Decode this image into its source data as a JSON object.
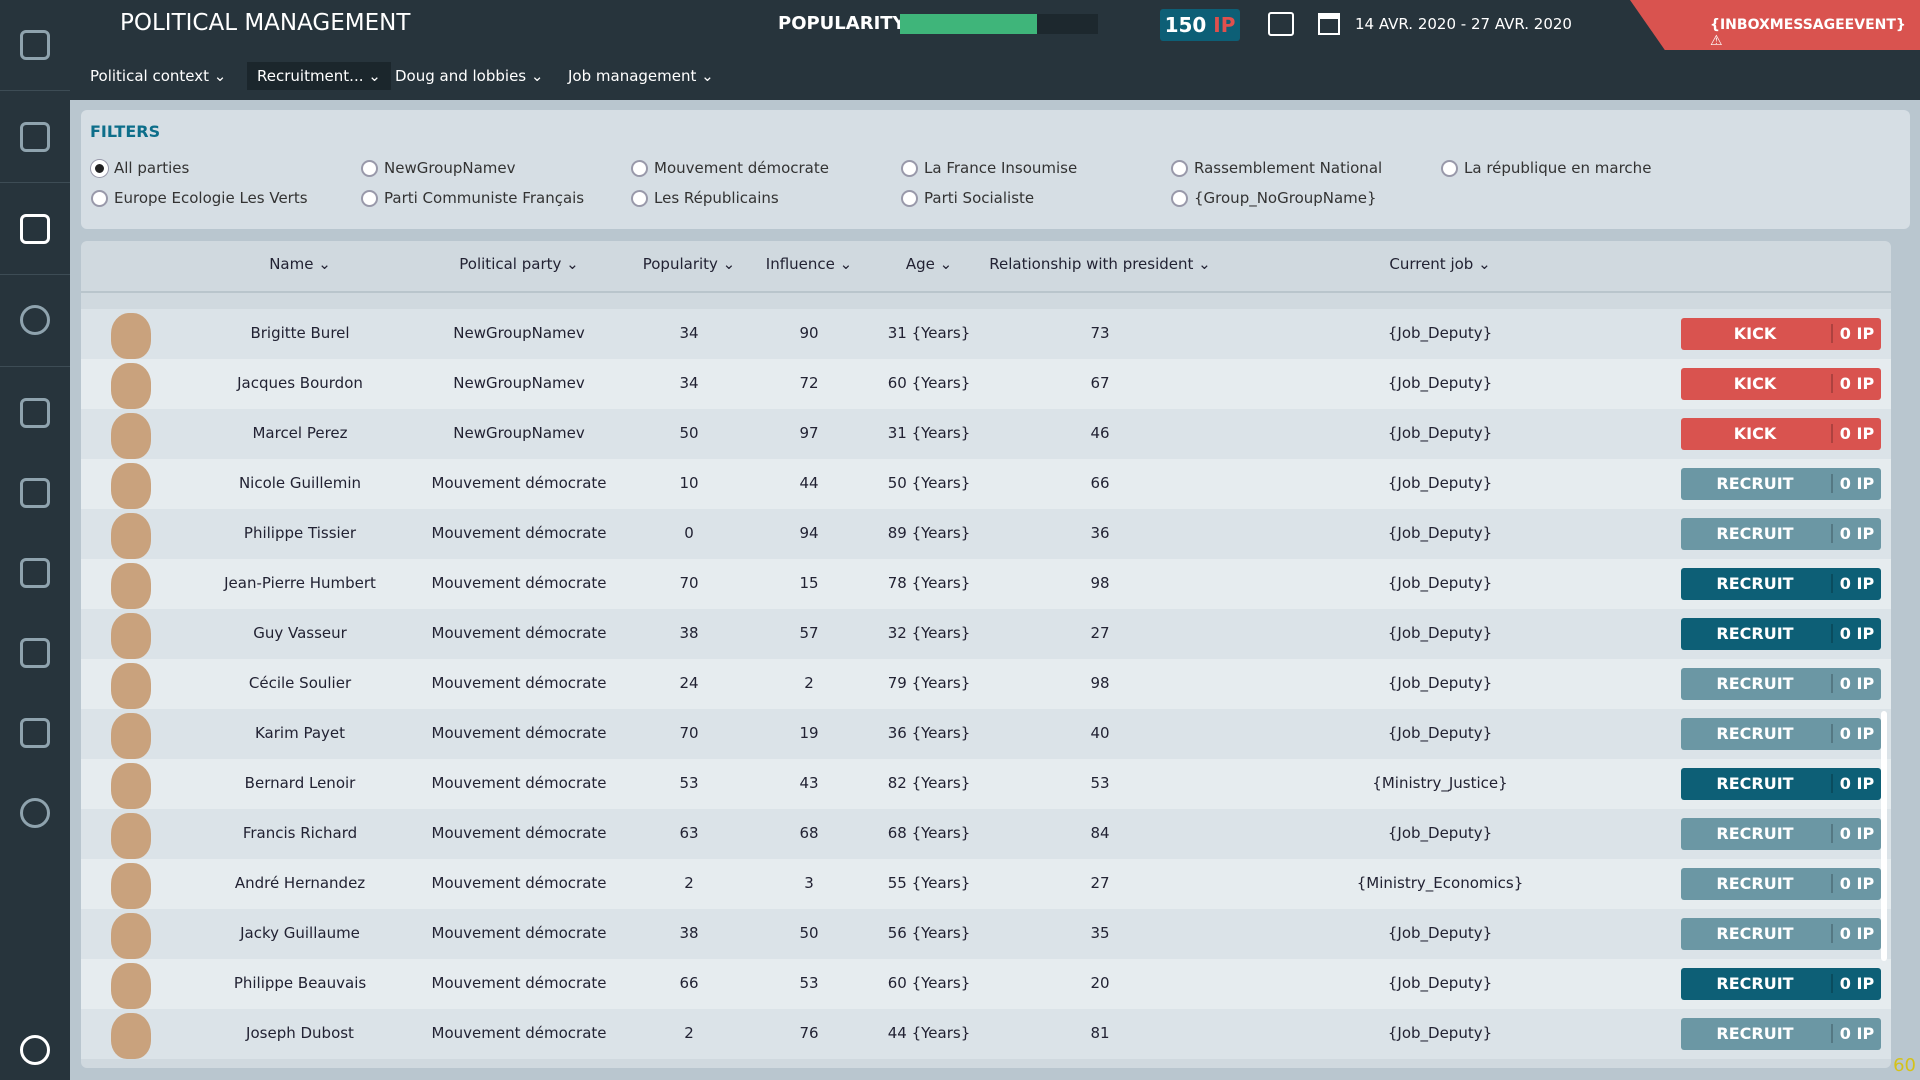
{
  "header": {
    "title": "POLITICAL MANAGEMENT",
    "popularity_label": "POPULARITY",
    "popularity": 69,
    "ip_value": "150",
    "ip_unit": "IP",
    "date_range": "14 AVR. 2020 - 27 AVR. 2020",
    "event": "{INBOXMESSAGEEVENT}"
  },
  "tabs": {
    "items": [
      "Political context",
      "Recruitment...",
      "Doug and lobbies",
      "Job management"
    ],
    "active": 1
  },
  "filters": {
    "title": "FILTERS",
    "options": [
      "All parties",
      "NewGroupNamev",
      "Mouvement démocrate",
      "La France Insoumise",
      "Rassemblement National",
      "La république en marche",
      "Europe Ecologie Les Verts",
      "Parti Communiste Français",
      "Les Républicains",
      "Parti Socialiste",
      "{Group_NoGroupName}"
    ],
    "selected": 0
  },
  "table": {
    "columns": [
      "Name",
      "Political party",
      "Popularity",
      "Influence",
      "Age",
      "Relationship with president",
      "Current job"
    ],
    "rows": [
      [
        "Brigitte Burel",
        "NewGroupNamev",
        34,
        90,
        "31 {Years}",
        73,
        "{Job_Deputy}",
        "KICK",
        "0 IP",
        "#d9534f"
      ],
      [
        "Jacques Bourdon",
        "NewGroupNamev",
        34,
        72,
        "60 {Years}",
        67,
        "{Job_Deputy}",
        "KICK",
        "0 IP",
        "#d9534f"
      ],
      [
        "Marcel Perez",
        "NewGroupNamev",
        50,
        97,
        "31 {Years}",
        46,
        "{Job_Deputy}",
        "KICK",
        "0 IP",
        "#d9534f"
      ],
      [
        "Nicole Guillemin",
        "Mouvement démocrate",
        10,
        44,
        "50 {Years}",
        66,
        "{Job_Deputy}",
        "RECRUIT",
        "0 IP",
        "#6b97a4"
      ],
      [
        "Philippe Tissier",
        "Mouvement démocrate",
        0,
        94,
        "89 {Years}",
        36,
        "{Job_Deputy}",
        "RECRUIT",
        "0 IP",
        "#6b97a4"
      ],
      [
        "Jean-Pierre Humbert",
        "Mouvement démocrate",
        70,
        15,
        "78 {Years}",
        98,
        "{Job_Deputy}",
        "RECRUIT",
        "0 IP",
        "#0d5f76"
      ],
      [
        "Guy Vasseur",
        "Mouvement démocrate",
        38,
        57,
        "32 {Years}",
        27,
        "{Job_Deputy}",
        "RECRUIT",
        "0 IP",
        "#0d5f76"
      ],
      [
        "Cécile Soulier",
        "Mouvement démocrate",
        24,
        2,
        "79 {Years}",
        98,
        "{Job_Deputy}",
        "RECRUIT",
        "0 IP",
        "#6b97a4"
      ],
      [
        "Karim Payet",
        "Mouvement démocrate",
        70,
        19,
        "36 {Years}",
        40,
        "{Job_Deputy}",
        "RECRUIT",
        "0 IP",
        "#6b97a4"
      ],
      [
        "Bernard Lenoir",
        "Mouvement démocrate",
        53,
        43,
        "82 {Years}",
        53,
        "{Ministry_Justice}",
        "RECRUIT",
        "0 IP",
        "#0d5f76"
      ],
      [
        "Francis Richard",
        "Mouvement démocrate",
        63,
        68,
        "68 {Years}",
        84,
        "{Job_Deputy}",
        "RECRUIT",
        "0 IP",
        "#6b97a4"
      ],
      [
        "André Hernandez",
        "Mouvement démocrate",
        2,
        3,
        "55 {Years}",
        27,
        "{Ministry_Economics}",
        "RECRUIT",
        "0 IP",
        "#6b97a4"
      ],
      [
        "Jacky Guillaume",
        "Mouvement démocrate",
        38,
        50,
        "56 {Years}",
        35,
        "{Job_Deputy}",
        "RECRUIT",
        "0 IP",
        "#6b97a4"
      ],
      [
        "Philippe Beauvais",
        "Mouvement démocrate",
        66,
        53,
        "60 {Years}",
        20,
        "{Job_Deputy}",
        "RECRUIT",
        "0 IP",
        "#0d5f76"
      ],
      [
        "Joseph Dubost",
        "Mouvement démocrate",
        2,
        76,
        "44 {Years}",
        81,
        "{Job_Deputy}",
        "RECRUIT",
        "0 IP",
        "#6b97a4"
      ]
    ]
  },
  "fps": "60"
}
